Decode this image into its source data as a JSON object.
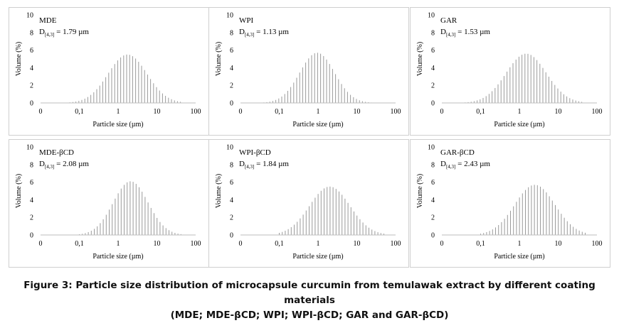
{
  "figure": {
    "caption_line1": "Figure 3: Particle size distribution of microcapsule curcumin from temulawak extract by different coating materials",
    "caption_line2": "(MDE; MDE-βCD; WPI; WPI-βCD; GAR and GAR-βCD)"
  },
  "chart_data": [
    {
      "type": "bar",
      "name": "MDE",
      "stat_label": "D",
      "stat_sub": "[4,3]",
      "stat_value": "= 1.79 µm",
      "xlabel": "Particle size (µm)",
      "ylabel": "Volume (%)",
      "xscale": "log",
      "x_ticks": [
        "0",
        "0,1",
        "1",
        "10",
        "100"
      ],
      "y_ticks": [
        "0",
        "2",
        "4",
        "6",
        "8",
        "10"
      ],
      "ylim": [
        0,
        10
      ],
      "distribution": {
        "peak_size_um": 1.75,
        "peak_volume": 5.5,
        "log_sigma": 0.5,
        "min_size_um": 0.04,
        "max_size_um": 45
      },
      "color": "#9a9a9a",
      "grid": false
    },
    {
      "type": "bar",
      "name": "WPI",
      "stat_label": "D",
      "stat_sub": "[4,3]",
      "stat_value": "= 1.13 µm",
      "xlabel": "Particle size (µm)",
      "ylabel": "Volume (%)",
      "xscale": "log",
      "x_ticks": [
        "0",
        "0,1",
        "1",
        "10",
        "100"
      ],
      "y_ticks": [
        "0",
        "2",
        "4",
        "6",
        "8",
        "10"
      ],
      "ylim": [
        0,
        10
      ],
      "distribution": {
        "peak_size_um": 0.95,
        "peak_volume": 5.7,
        "log_sigma": 0.45,
        "min_size_um": 0.04,
        "max_size_um": 25
      },
      "color": "#9a9a9a",
      "grid": false
    },
    {
      "type": "bar",
      "name": "GAR",
      "stat_label": "D",
      "stat_sub": "[4,3]",
      "stat_value": "= 1.53 µm",
      "xlabel": "Particle size (µm)",
      "ylabel": "Volume (%)",
      "xscale": "log",
      "x_ticks": [
        "0",
        "0,1",
        "1",
        "10",
        "100"
      ],
      "y_ticks": [
        "0",
        "2",
        "4",
        "6",
        "8",
        "10"
      ],
      "ylim": [
        0,
        10
      ],
      "distribution": {
        "peak_size_um": 1.5,
        "peak_volume": 5.6,
        "log_sigma": 0.52,
        "min_size_um": 0.04,
        "max_size_um": 45
      },
      "color": "#9a9a9a",
      "grid": false
    },
    {
      "type": "bar",
      "name": "MDE-βCD",
      "stat_label": "D",
      "stat_sub": "[4,3]",
      "stat_value": "= 2.08 µm",
      "xlabel": "Particle size (µm)",
      "ylabel": "Volume (%)",
      "xscale": "log",
      "x_ticks": [
        "0",
        "0,1",
        "1",
        "10",
        "100"
      ],
      "y_ticks": [
        "0",
        "2",
        "4",
        "6",
        "8",
        "10"
      ],
      "ylim": [
        0,
        10
      ],
      "distribution": {
        "peak_size_um": 2.1,
        "peak_volume": 6.1,
        "log_sigma": 0.45,
        "min_size_um": 0.1,
        "max_size_um": 45
      },
      "color": "#9a9a9a",
      "grid": false
    },
    {
      "type": "bar",
      "name": "WPI-βCD",
      "stat_label": "D",
      "stat_sub": "[4,3]",
      "stat_value": "= 1.84 µm",
      "xlabel": "Particle size (µm)",
      "ylabel": "Volume (%)",
      "xscale": "log",
      "x_ticks": [
        "0",
        "0,1",
        "1",
        "10",
        "100"
      ],
      "y_ticks": [
        "0",
        "2",
        "4",
        "6",
        "8",
        "10"
      ],
      "ylim": [
        0,
        10
      ],
      "distribution": {
        "peak_size_um": 2.0,
        "peak_volume": 5.5,
        "log_sigma": 0.52,
        "min_size_um": 0.1,
        "max_size_um": 50
      },
      "color": "#9a9a9a",
      "grid": false
    },
    {
      "type": "bar",
      "name": "GAR-βCD",
      "stat_label": "D",
      "stat_sub": "[4,3]",
      "stat_value": "= 2.43 µm",
      "xlabel": "Particle size (µm)",
      "ylabel": "Volume (%)",
      "xscale": "log",
      "x_ticks": [
        "0",
        "0,1",
        "1",
        "10",
        "100"
      ],
      "y_ticks": [
        "0",
        "2",
        "4",
        "6",
        "8",
        "10"
      ],
      "ylim": [
        0,
        10
      ],
      "distribution": {
        "peak_size_um": 2.5,
        "peak_volume": 5.7,
        "log_sigma": 0.52,
        "min_size_um": 0.1,
        "max_size_um": 55
      },
      "color": "#9a9a9a",
      "grid": false
    }
  ]
}
